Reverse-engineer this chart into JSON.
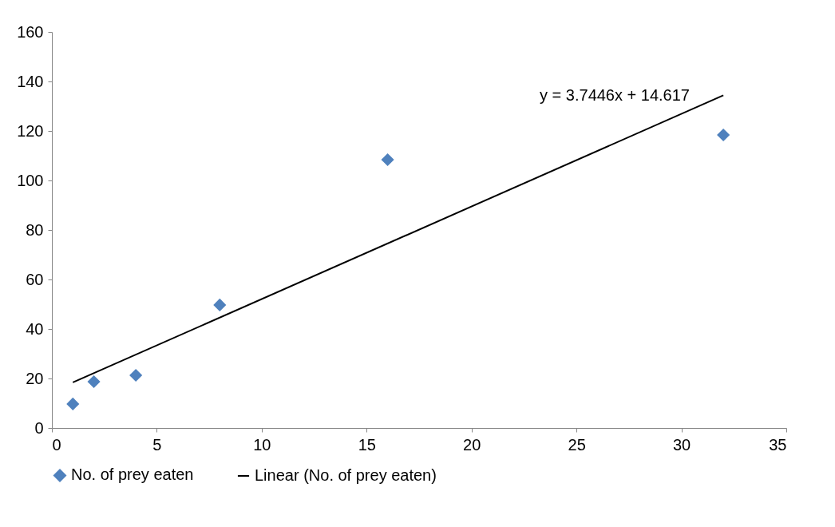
{
  "chart_data": {
    "type": "scatter",
    "legend": "bottom",
    "grid": false,
    "xlim": [
      0,
      35
    ],
    "xticks": [
      0,
      5,
      10,
      15,
      20,
      25,
      30,
      35
    ],
    "ylim": [
      0,
      160
    ],
    "yticks": [
      0,
      20,
      40,
      60,
      80,
      100,
      120,
      140,
      160
    ],
    "annotations": [
      "y = 3.7446x + 14.617"
    ],
    "series": [
      {
        "name": "No. of prey eaten",
        "marker": "diamond",
        "color": "#4f81bd",
        "x": [
          1,
          2,
          4,
          8,
          16,
          32
        ],
        "values": [
          9.7,
          18.7,
          21.3,
          49.7,
          108.4,
          118.4
        ]
      },
      {
        "name": "Linear (No. of prey eaten)",
        "type": "line",
        "color": "#000000",
        "x": [
          1,
          32
        ],
        "values": [
          18.4,
          134.4
        ]
      }
    ]
  }
}
